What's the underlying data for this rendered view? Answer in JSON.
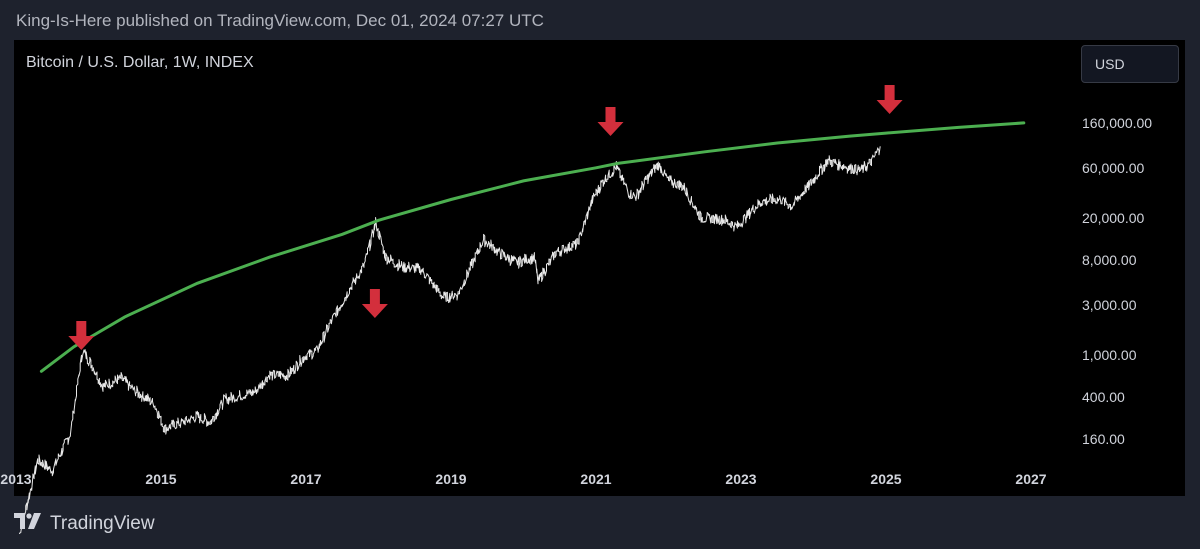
{
  "header": {
    "text": "King-Is-Here published on TradingView.com, Dec 01, 2024 07:27 UTC"
  },
  "chart": {
    "title": "Bitcoin / U.S. Dollar, 1W, INDEX",
    "currency": "USD"
  },
  "footer": {
    "brand": "TradingView",
    "logo_icon": "tradingview-logo-icon"
  },
  "colors": {
    "page_bg": "#1e222d",
    "chart_bg": "#000000",
    "price": "#e8e8e8",
    "resistance": "#4caf50",
    "arrow": "#d32f3c",
    "axis_text": "#d1d4dc"
  },
  "chart_data": {
    "type": "line",
    "title": "Bitcoin / U.S. Dollar, 1W, INDEX",
    "xlabel": "",
    "ylabel": "",
    "y_scale": "log",
    "x_ticks": [
      "2013",
      "2015",
      "2017",
      "2019",
      "2021",
      "2023",
      "2025",
      "2027"
    ],
    "y_ticks": [
      160000,
      60000,
      20000,
      8000,
      3000,
      1000,
      400,
      160
    ],
    "y_tick_labels": [
      "160,000.00",
      "60,000.00",
      "20,000.00",
      "8,000.00",
      "3,000.00",
      "1,000.00",
      "400.00",
      "160.00"
    ],
    "xlim": [
      2012.85,
      2028.4
    ],
    "grid": false,
    "series": [
      {
        "values": [
          [
            2013.05,
            20
          ],
          [
            2013.3,
            100
          ],
          [
            2013.5,
            80
          ],
          [
            2013.75,
            180
          ],
          [
            2013.92,
            1100
          ],
          [
            2014.05,
            800
          ],
          [
            2014.2,
            500
          ],
          [
            2014.45,
            600
          ],
          [
            2014.65,
            450
          ],
          [
            2014.9,
            350
          ],
          [
            2015.05,
            200
          ],
          [
            2015.3,
            230
          ],
          [
            2015.5,
            260
          ],
          [
            2015.68,
            230
          ],
          [
            2015.88,
            380
          ],
          [
            2016.05,
            400
          ],
          [
            2016.3,
            450
          ],
          [
            2016.5,
            650
          ],
          [
            2016.75,
            640
          ],
          [
            2016.98,
            970
          ],
          [
            2017.15,
            1100
          ],
          [
            2017.35,
            2100
          ],
          [
            2017.6,
            4200
          ],
          [
            2017.8,
            7000
          ],
          [
            2017.96,
            18000
          ],
          [
            2018.1,
            8500
          ],
          [
            2018.3,
            7000
          ],
          [
            2018.6,
            6400
          ],
          [
            2018.9,
            3500
          ],
          [
            2019.1,
            3800
          ],
          [
            2019.45,
            12500
          ],
          [
            2019.7,
            9000
          ],
          [
            2019.9,
            7500
          ],
          [
            2020.15,
            8500
          ],
          [
            2020.2,
            5000
          ],
          [
            2020.45,
            9500
          ],
          [
            2020.75,
            11500
          ],
          [
            2020.95,
            30000
          ],
          [
            2021.1,
            45000
          ],
          [
            2021.28,
            61000
          ],
          [
            2021.45,
            35000
          ],
          [
            2021.55,
            32000
          ],
          [
            2021.7,
            47000
          ],
          [
            2021.86,
            65000
          ],
          [
            2022.0,
            45000
          ],
          [
            2022.2,
            40000
          ],
          [
            2022.45,
            20000
          ],
          [
            2022.75,
            19500
          ],
          [
            2022.95,
            16500
          ],
          [
            2023.15,
            24000
          ],
          [
            2023.3,
            29000
          ],
          [
            2023.55,
            30000
          ],
          [
            2023.7,
            26000
          ],
          [
            2023.95,
            42000
          ],
          [
            2024.2,
            70000
          ],
          [
            2024.5,
            60000
          ],
          [
            2024.65,
            57000
          ],
          [
            2024.8,
            68000
          ],
          [
            2024.92,
            96000
          ]
        ]
      },
      {
        "values": [
          [
            2013.35,
            700
          ],
          [
            2013.8,
            1200
          ],
          [
            2014.5,
            2300
          ],
          [
            2015.5,
            4800
          ],
          [
            2016.5,
            8500
          ],
          [
            2017.5,
            14000
          ],
          [
            2018.0,
            19000
          ],
          [
            2019.0,
            30000
          ],
          [
            2020.0,
            45000
          ],
          [
            2021.0,
            60000
          ],
          [
            2021.3,
            66000
          ],
          [
            2022.5,
            85000
          ],
          [
            2023.5,
            103000
          ],
          [
            2024.5,
            120000
          ],
          [
            2025.0,
            128000
          ],
          [
            2026.0,
            145000
          ],
          [
            2026.9,
            160000
          ]
        ]
      }
    ],
    "markers": [
      {
        "shape": "down-arrow",
        "x": 2013.9
      },
      {
        "shape": "down-arrow",
        "x": 2017.95
      },
      {
        "shape": "down-arrow",
        "x": 2021.2
      },
      {
        "shape": "down-arrow",
        "x": 2025.05
      }
    ]
  }
}
